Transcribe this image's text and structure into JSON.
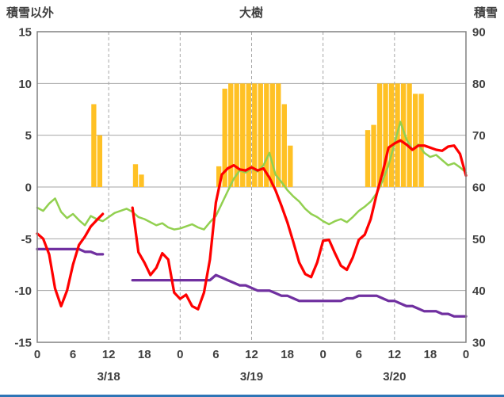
{
  "header": {
    "left_axis_title": "積雪以外",
    "title": "大樹",
    "right_axis_title": "積雪"
  },
  "colors": {
    "bar": "#FFC125",
    "red_line": "#FF0000",
    "green_line": "#92D050",
    "purple_line": "#7030A0",
    "grid": "#A6A6A6",
    "border": "#808080",
    "text": "#404040",
    "bottom_bar": "#2E75B6"
  },
  "chart_data": {
    "type": "mixed",
    "title": "大樹",
    "x_unit": "hour",
    "x_range": [
      0,
      72
    ],
    "left_axis": {
      "label": "積雪以外",
      "min": -15,
      "max": 15,
      "ticks": [
        15,
        10,
        5,
        0,
        -5,
        -10,
        -15
      ]
    },
    "right_axis": {
      "label": "積雪",
      "min": 30,
      "max": 90,
      "ticks": [
        90,
        80,
        70,
        60,
        50,
        40,
        30
      ]
    },
    "x_ticks": {
      "hours": [
        0,
        6,
        12,
        18,
        24,
        30,
        36,
        42,
        48,
        54,
        60,
        66,
        72
      ],
      "labels": [
        "0",
        "6",
        "12",
        "18",
        "0",
        "6",
        "12",
        "18",
        "0",
        "6",
        "12",
        "18",
        "0"
      ]
    },
    "day_labels": [
      {
        "label": "3/18",
        "hour": 12
      },
      {
        "label": "3/19",
        "hour": 36
      },
      {
        "label": "3/20",
        "hour": 60
      }
    ],
    "vertical_dashed_hours": [
      12,
      24,
      36,
      48,
      60
    ],
    "series": [
      {
        "name": "bar-series",
        "type": "bar",
        "axis": "left",
        "color": "#FFC125",
        "points": [
          [
            9,
            8
          ],
          [
            10,
            5
          ],
          [
            16,
            2.2
          ],
          [
            17,
            1.2
          ],
          [
            30,
            2
          ],
          [
            31,
            9.5
          ],
          [
            32,
            10
          ],
          [
            33,
            10
          ],
          [
            34,
            10
          ],
          [
            35,
            10
          ],
          [
            36,
            10
          ],
          [
            37,
            10
          ],
          [
            38,
            10
          ],
          [
            39,
            10
          ],
          [
            40,
            10
          ],
          [
            41,
            8
          ],
          [
            42,
            4
          ],
          [
            55,
            5.5
          ],
          [
            56,
            6
          ],
          [
            57,
            10
          ],
          [
            58,
            10
          ],
          [
            59,
            10
          ],
          [
            60,
            10
          ],
          [
            61,
            10
          ],
          [
            62,
            10
          ],
          [
            63,
            9
          ],
          [
            64,
            9
          ]
        ]
      },
      {
        "name": "green-line",
        "type": "line",
        "axis": "left",
        "color": "#92D050",
        "width": 2.5,
        "segments": [
          [
            [
              0,
              -2
            ],
            [
              1,
              -2.3
            ],
            [
              2,
              -1.6
            ],
            [
              3,
              -1.1
            ],
            [
              4,
              -2.4
            ],
            [
              5,
              -3
            ],
            [
              6,
              -2.6
            ],
            [
              7,
              -3.2
            ],
            [
              8,
              -3.7
            ],
            [
              9,
              -2.8
            ],
            [
              10,
              -3.1
            ],
            [
              11,
              -3.3
            ],
            [
              12,
              -2.9
            ],
            [
              13,
              -2.5
            ],
            [
              14,
              -2.3
            ],
            [
              15,
              -2.1
            ],
            [
              16,
              -2.4
            ],
            [
              17,
              -2.9
            ],
            [
              18,
              -3.1
            ],
            [
              19,
              -3.4
            ],
            [
              20,
              -3.7
            ],
            [
              21,
              -3.5
            ],
            [
              22,
              -3.9
            ],
            [
              23,
              -4.1
            ],
            [
              24,
              -4
            ],
            [
              25,
              -3.8
            ],
            [
              26,
              -3.6
            ],
            [
              27,
              -3.9
            ],
            [
              28,
              -4.1
            ],
            [
              29,
              -3.4
            ],
            [
              30,
              -2.8
            ],
            [
              31,
              -1.6
            ],
            [
              32,
              -0.4
            ],
            [
              33,
              0.8
            ],
            [
              34,
              1.6
            ],
            [
              35,
              1.4
            ],
            [
              36,
              1.8
            ],
            [
              37,
              1.5
            ],
            [
              38,
              2.1
            ],
            [
              39,
              3.3
            ],
            [
              40,
              1.2
            ],
            [
              41,
              0.5
            ],
            [
              42,
              -0.3
            ],
            [
              43,
              -0.9
            ],
            [
              44,
              -1.4
            ],
            [
              45,
              -2.1
            ],
            [
              46,
              -2.6
            ],
            [
              47,
              -2.9
            ],
            [
              48,
              -3.3
            ],
            [
              49,
              -3.6
            ],
            [
              50,
              -3.3
            ],
            [
              51,
              -3.1
            ],
            [
              52,
              -3.4
            ],
            [
              53,
              -2.9
            ],
            [
              54,
              -2.3
            ],
            [
              55,
              -1.9
            ],
            [
              56,
              -1.4
            ],
            [
              57,
              -0.6
            ],
            [
              58,
              0.6
            ],
            [
              59,
              2.1
            ],
            [
              60,
              4.2
            ],
            [
              61,
              6.3
            ],
            [
              62,
              4.6
            ],
            [
              63,
              3.6
            ],
            [
              64,
              4.1
            ],
            [
              65,
              3.3
            ],
            [
              66,
              2.9
            ],
            [
              67,
              3.1
            ],
            [
              68,
              2.6
            ],
            [
              69,
              2.1
            ],
            [
              70,
              2.3
            ],
            [
              71,
              1.9
            ],
            [
              72,
              1.4
            ]
          ]
        ]
      },
      {
        "name": "purple-line",
        "type": "line",
        "axis": "right",
        "color": "#7030A0",
        "width": 3.25,
        "segments": [
          [
            [
              0,
              48
            ],
            [
              1,
              48
            ],
            [
              2,
              48
            ],
            [
              3,
              48
            ],
            [
              4,
              48
            ],
            [
              5,
              48
            ],
            [
              6,
              48
            ],
            [
              7,
              48
            ],
            [
              8,
              47.5
            ],
            [
              9,
              47.5
            ],
            [
              10,
              47
            ],
            [
              11,
              47
            ]
          ],
          [
            [
              16,
              42
            ],
            [
              17,
              42
            ],
            [
              18,
              42
            ],
            [
              19,
              42
            ],
            [
              20,
              42
            ],
            [
              21,
              42
            ],
            [
              22,
              42
            ],
            [
              23,
              42
            ],
            [
              24,
              42
            ],
            [
              25,
              42
            ],
            [
              26,
              42
            ],
            [
              27,
              42
            ],
            [
              28,
              42
            ],
            [
              29,
              42
            ],
            [
              30,
              43
            ],
            [
              31,
              42.5
            ],
            [
              32,
              42
            ],
            [
              33,
              41.5
            ],
            [
              34,
              41
            ],
            [
              35,
              41
            ],
            [
              36,
              40.5
            ],
            [
              37,
              40
            ],
            [
              38,
              40
            ],
            [
              39,
              40
            ],
            [
              40,
              39.5
            ],
            [
              41,
              39
            ],
            [
              42,
              39
            ],
            [
              43,
              38.5
            ],
            [
              44,
              38
            ],
            [
              45,
              38
            ],
            [
              46,
              38
            ],
            [
              47,
              38
            ],
            [
              48,
              38
            ],
            [
              49,
              38
            ],
            [
              50,
              38
            ],
            [
              51,
              38
            ],
            [
              52,
              38.5
            ],
            [
              53,
              38.5
            ],
            [
              54,
              39
            ],
            [
              55,
              39
            ],
            [
              56,
              39
            ],
            [
              57,
              39
            ],
            [
              58,
              38.5
            ],
            [
              59,
              38
            ],
            [
              60,
              38
            ],
            [
              61,
              37.5
            ],
            [
              62,
              37
            ],
            [
              63,
              37
            ],
            [
              64,
              36.5
            ],
            [
              65,
              36
            ],
            [
              66,
              36
            ],
            [
              67,
              36
            ],
            [
              68,
              35.5
            ],
            [
              69,
              35.5
            ],
            [
              70,
              35
            ],
            [
              71,
              35
            ],
            [
              72,
              35
            ]
          ]
        ]
      },
      {
        "name": "red-line",
        "type": "line",
        "axis": "left",
        "color": "#FF0000",
        "width": 3.25,
        "segments": [
          [
            [
              0,
              -4.5
            ],
            [
              1,
              -5
            ],
            [
              2,
              -6.5
            ],
            [
              3,
              -9.8
            ],
            [
              4,
              -11.5
            ],
            [
              5,
              -10
            ],
            [
              6,
              -7.5
            ],
            [
              7,
              -5.6
            ],
            [
              8,
              -4.8
            ],
            [
              9,
              -3.8
            ],
            [
              10,
              -3.2
            ],
            [
              11,
              -2.6
            ]
          ],
          [
            [
              16,
              -2
            ],
            [
              17,
              -6.3
            ],
            [
              18,
              -7.3
            ],
            [
              19,
              -8.5
            ],
            [
              20,
              -7.8
            ],
            [
              21,
              -6.4
            ],
            [
              22,
              -7
            ],
            [
              23,
              -10.2
            ],
            [
              24,
              -10.8
            ],
            [
              25,
              -10.4
            ],
            [
              26,
              -11.5
            ],
            [
              27,
              -11.8
            ],
            [
              28,
              -10.2
            ],
            [
              29,
              -7
            ],
            [
              30,
              -1.5
            ],
            [
              31,
              1.2
            ],
            [
              32,
              1.8
            ],
            [
              33,
              2.1
            ],
            [
              34,
              1.7
            ],
            [
              35,
              1.6
            ],
            [
              36,
              1.9
            ],
            [
              37,
              1.6
            ],
            [
              38,
              1.8
            ],
            [
              39,
              0.9
            ],
            [
              40,
              -0.3
            ],
            [
              41,
              -1.8
            ],
            [
              42,
              -3.4
            ],
            [
              43,
              -5.3
            ],
            [
              44,
              -7.3
            ],
            [
              45,
              -8.4
            ],
            [
              46,
              -8.7
            ],
            [
              47,
              -7.3
            ],
            [
              48,
              -5.2
            ],
            [
              49,
              -5.1
            ],
            [
              50,
              -6.4
            ],
            [
              51,
              -7.6
            ],
            [
              52,
              -8
            ],
            [
              53,
              -6.8
            ],
            [
              54,
              -5.1
            ],
            [
              55,
              -4.6
            ],
            [
              56,
              -3.1
            ],
            [
              57,
              -0.7
            ],
            [
              58,
              1.4
            ],
            [
              59,
              3.8
            ],
            [
              60,
              4.2
            ],
            [
              61,
              4.5
            ],
            [
              62,
              4.1
            ],
            [
              63,
              3.6
            ],
            [
              64,
              4
            ],
            [
              65,
              4
            ],
            [
              66,
              3.8
            ],
            [
              67,
              3.6
            ],
            [
              68,
              3.5
            ],
            [
              69,
              3.9
            ],
            [
              70,
              4
            ],
            [
              71,
              3.2
            ],
            [
              72,
              1.1
            ]
          ]
        ]
      }
    ]
  }
}
